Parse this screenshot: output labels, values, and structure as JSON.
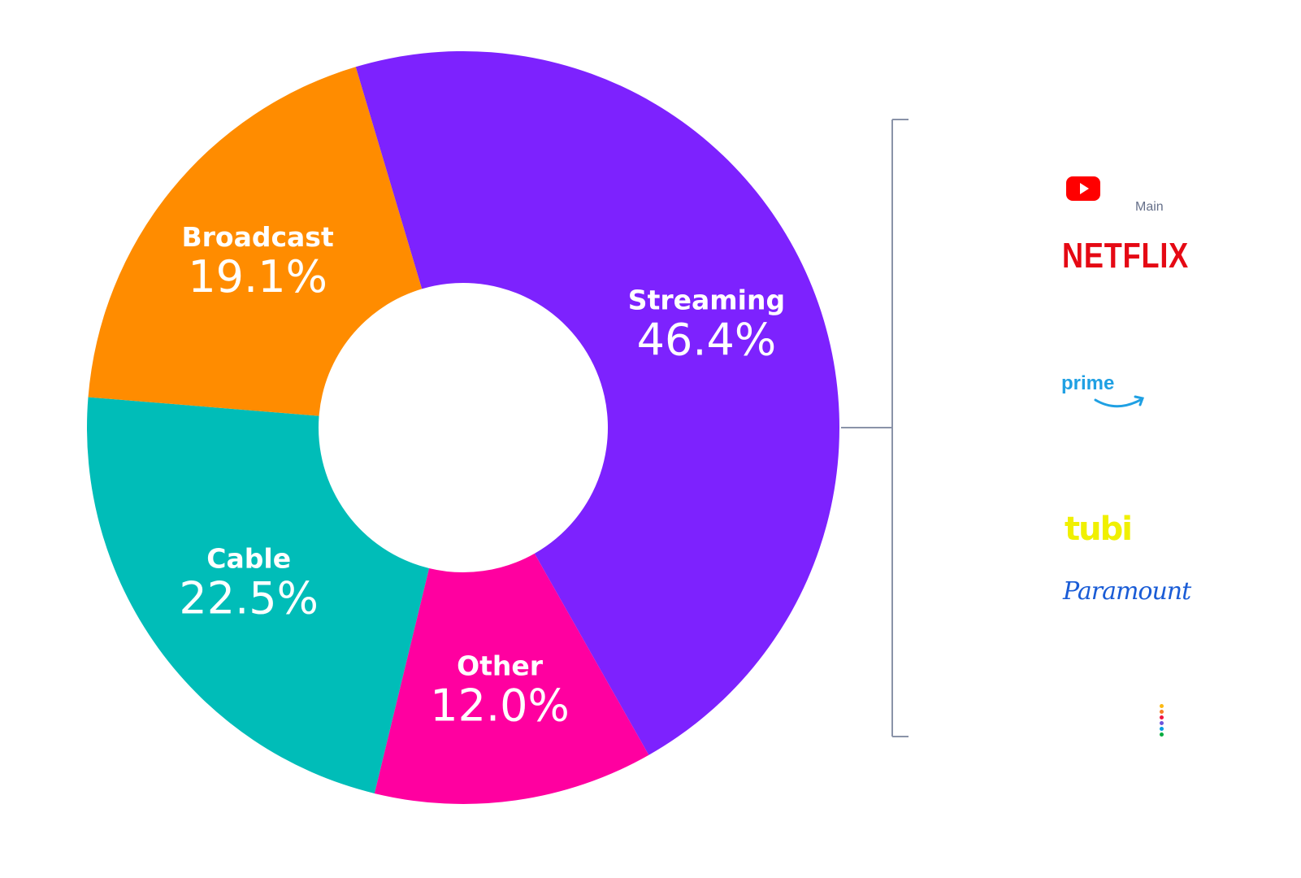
{
  "chart_data": {
    "type": "pie",
    "donut": true,
    "slices": [
      {
        "label": "Streaming",
        "value": 46.4,
        "value_label": "46.4%",
        "color": "#7d22fe"
      },
      {
        "label": "Other",
        "value": 12.0,
        "value_label": "12.0%",
        "color": "#ff00a0"
      },
      {
        "label": "Cable",
        "value": 22.5,
        "value_label": "22.5%",
        "color": "#00bdb8"
      },
      {
        "label": "Broadcast",
        "value": 19.1,
        "value_label": "19.1%",
        "color": "#ff8c00"
      }
    ]
  },
  "streaming_breakdown": {
    "bracket_color": "#8a93a8",
    "logos": [
      {
        "name": "youtube-logo",
        "icon": "youtube-icon",
        "sub_label": "Main",
        "color": "#ff0000"
      },
      {
        "name": "netflix-logo",
        "text": "NETFLIX",
        "color": "#e50914"
      },
      {
        "name": "prime-logo",
        "text": "prime",
        "color": "#1fa0e3"
      },
      {
        "name": "tubi-logo",
        "text": "tubi",
        "color": "#f0f000"
      },
      {
        "name": "paramount-logo",
        "text": "Paramount",
        "color": "#1a5cd6"
      },
      {
        "name": "peacock-logo",
        "icon": "peacock-dots-icon",
        "colors": [
          "#fcb913",
          "#f57e24",
          "#ef1541",
          "#6e55dc",
          "#069de0",
          "#05ac3f"
        ]
      }
    ]
  }
}
